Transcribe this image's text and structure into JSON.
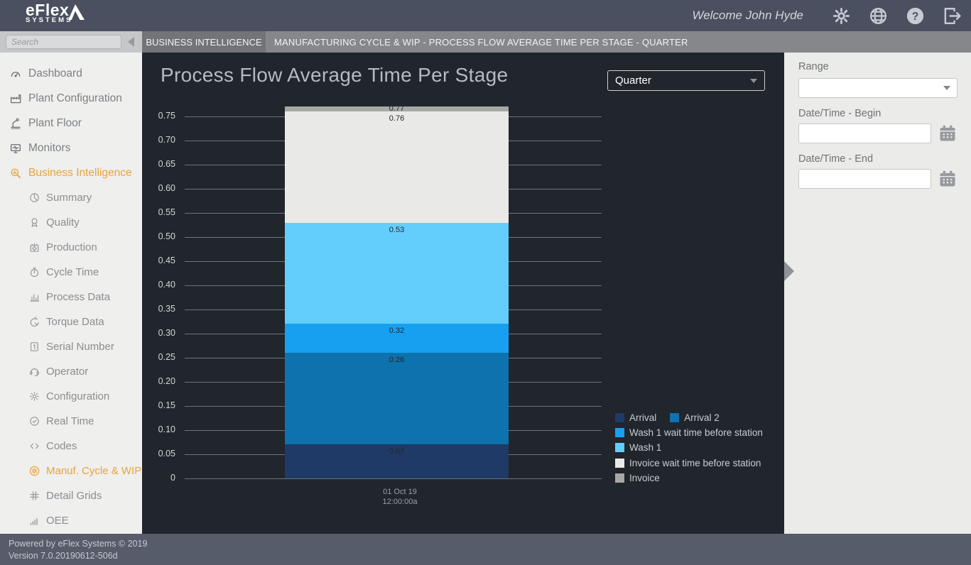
{
  "header": {
    "logo_line1": "eFlex",
    "logo_line2": "SYSTEMS",
    "welcome": "Welcome John Hyde",
    "action_icons": [
      "gear-icon",
      "globe-icon",
      "help-icon",
      "logout-icon"
    ]
  },
  "search": {
    "placeholder": "Search"
  },
  "tabs": [
    {
      "label": "BUSINESS INTELLIGENCE"
    },
    {
      "label": "MANUFACTURING CYCLE & WIP - PROCESS FLOW AVERAGE TIME PER STAGE - QUARTER"
    }
  ],
  "sidebar": {
    "items": [
      {
        "label": "Dashboard",
        "icon": "dashboard",
        "level": 1,
        "active": false
      },
      {
        "label": "Plant Configuration",
        "icon": "plant-configuration",
        "level": 1,
        "active": false
      },
      {
        "label": "Plant Floor",
        "icon": "plant-floor",
        "level": 1,
        "active": false
      },
      {
        "label": "Monitors",
        "icon": "monitors",
        "level": 1,
        "active": false
      },
      {
        "label": "Business Intelligence",
        "icon": "business-intelligence",
        "level": 1,
        "active": true
      },
      {
        "label": "Summary",
        "icon": "summary",
        "level": 2,
        "active": false
      },
      {
        "label": "Quality",
        "icon": "quality",
        "level": 2,
        "active": false
      },
      {
        "label": "Production",
        "icon": "production",
        "level": 2,
        "active": false
      },
      {
        "label": "Cycle Time",
        "icon": "cycle-time",
        "level": 2,
        "active": false
      },
      {
        "label": "Process Data",
        "icon": "process-data",
        "level": 2,
        "active": false
      },
      {
        "label": "Torque Data",
        "icon": "torque-data",
        "level": 2,
        "active": false
      },
      {
        "label": "Serial Number",
        "icon": "serial-number",
        "level": 2,
        "active": false
      },
      {
        "label": "Operator",
        "icon": "operator",
        "level": 2,
        "active": false
      },
      {
        "label": "Configuration",
        "icon": "configuration",
        "level": 2,
        "active": false
      },
      {
        "label": "Real Time",
        "icon": "real-time",
        "level": 2,
        "active": false
      },
      {
        "label": "Codes",
        "icon": "codes",
        "level": 2,
        "active": false
      },
      {
        "label": "Manuf. Cycle & WIP",
        "icon": "manuf-cycle-wip",
        "level": 2,
        "active": true
      },
      {
        "label": "Detail Grids",
        "icon": "detail-grids",
        "level": 2,
        "active": false
      },
      {
        "label": "OEE",
        "icon": "oee",
        "level": 2,
        "active": false
      }
    ]
  },
  "main": {
    "title": "Process Flow Average Time Per Stage",
    "period_select": {
      "value": "Quarter"
    }
  },
  "chart_data": {
    "type": "bar",
    "stacked": true,
    "title": "Process Flow Average Time Per Stage",
    "categories": [
      "01 Oct 19 12:00:00a"
    ],
    "x_tick_lines": [
      "01 Oct 19",
      "12:00:00a"
    ],
    "series": [
      {
        "name": "Arrival",
        "values": [
          0.07
        ],
        "color": "#1f3a66",
        "stack_top_label": "0.07"
      },
      {
        "name": "Arrival 2",
        "values": [
          0.19
        ],
        "color": "#0d72ad",
        "stack_top_label": "0.26"
      },
      {
        "name": "Wash 1 wait time before station",
        "values": [
          0.06
        ],
        "color": "#18a0f0",
        "stack_top_label": "0.32"
      },
      {
        "name": "Wash 1",
        "values": [
          0.21
        ],
        "color": "#63cefb",
        "stack_top_label": "0.53"
      },
      {
        "name": "Invoice wait time before station",
        "values": [
          0.23
        ],
        "color": "#e9e9e7",
        "stack_top_label": "0.76"
      },
      {
        "name": "Invoice",
        "values": [
          0.01
        ],
        "color": "#a8a8a6",
        "stack_top_label": "0.77"
      }
    ],
    "total": 0.77,
    "ylim": [
      0,
      0.75
    ],
    "y_tick_labels": [
      "0",
      "0.05",
      "0.10",
      "0.15",
      "0.20",
      "0.25",
      "0.30",
      "0.35",
      "0.40",
      "0.45",
      "0.50",
      "0.55",
      "0.60",
      "0.65",
      "0.70",
      "0.75"
    ],
    "grid": true,
    "legend_position": "bottom-right",
    "legend_rows": [
      [
        0,
        1
      ],
      [
        2
      ],
      [
        3
      ],
      [
        4
      ],
      [
        5
      ]
    ]
  },
  "filters": {
    "range_label": "Range",
    "range_value": "",
    "begin_label": "Date/Time - Begin",
    "begin_value": "",
    "end_label": "Date/Time - End",
    "end_value": ""
  },
  "footer": {
    "line1": "Powered by eFlex Systems © 2019",
    "line2": "Version 7.0.20190612-506d"
  },
  "colors": {
    "header_bg": "#4a5060",
    "tabbar_bg": "#85878a",
    "active_tab_bg": "#727477",
    "sidebar_bg": "#efefee",
    "chart_bg": "#21252c",
    "panel_bg": "#ebebea",
    "footer_bg": "#565c69",
    "accent_orange": "#e8a33d",
    "gridline": "#6e727a"
  }
}
